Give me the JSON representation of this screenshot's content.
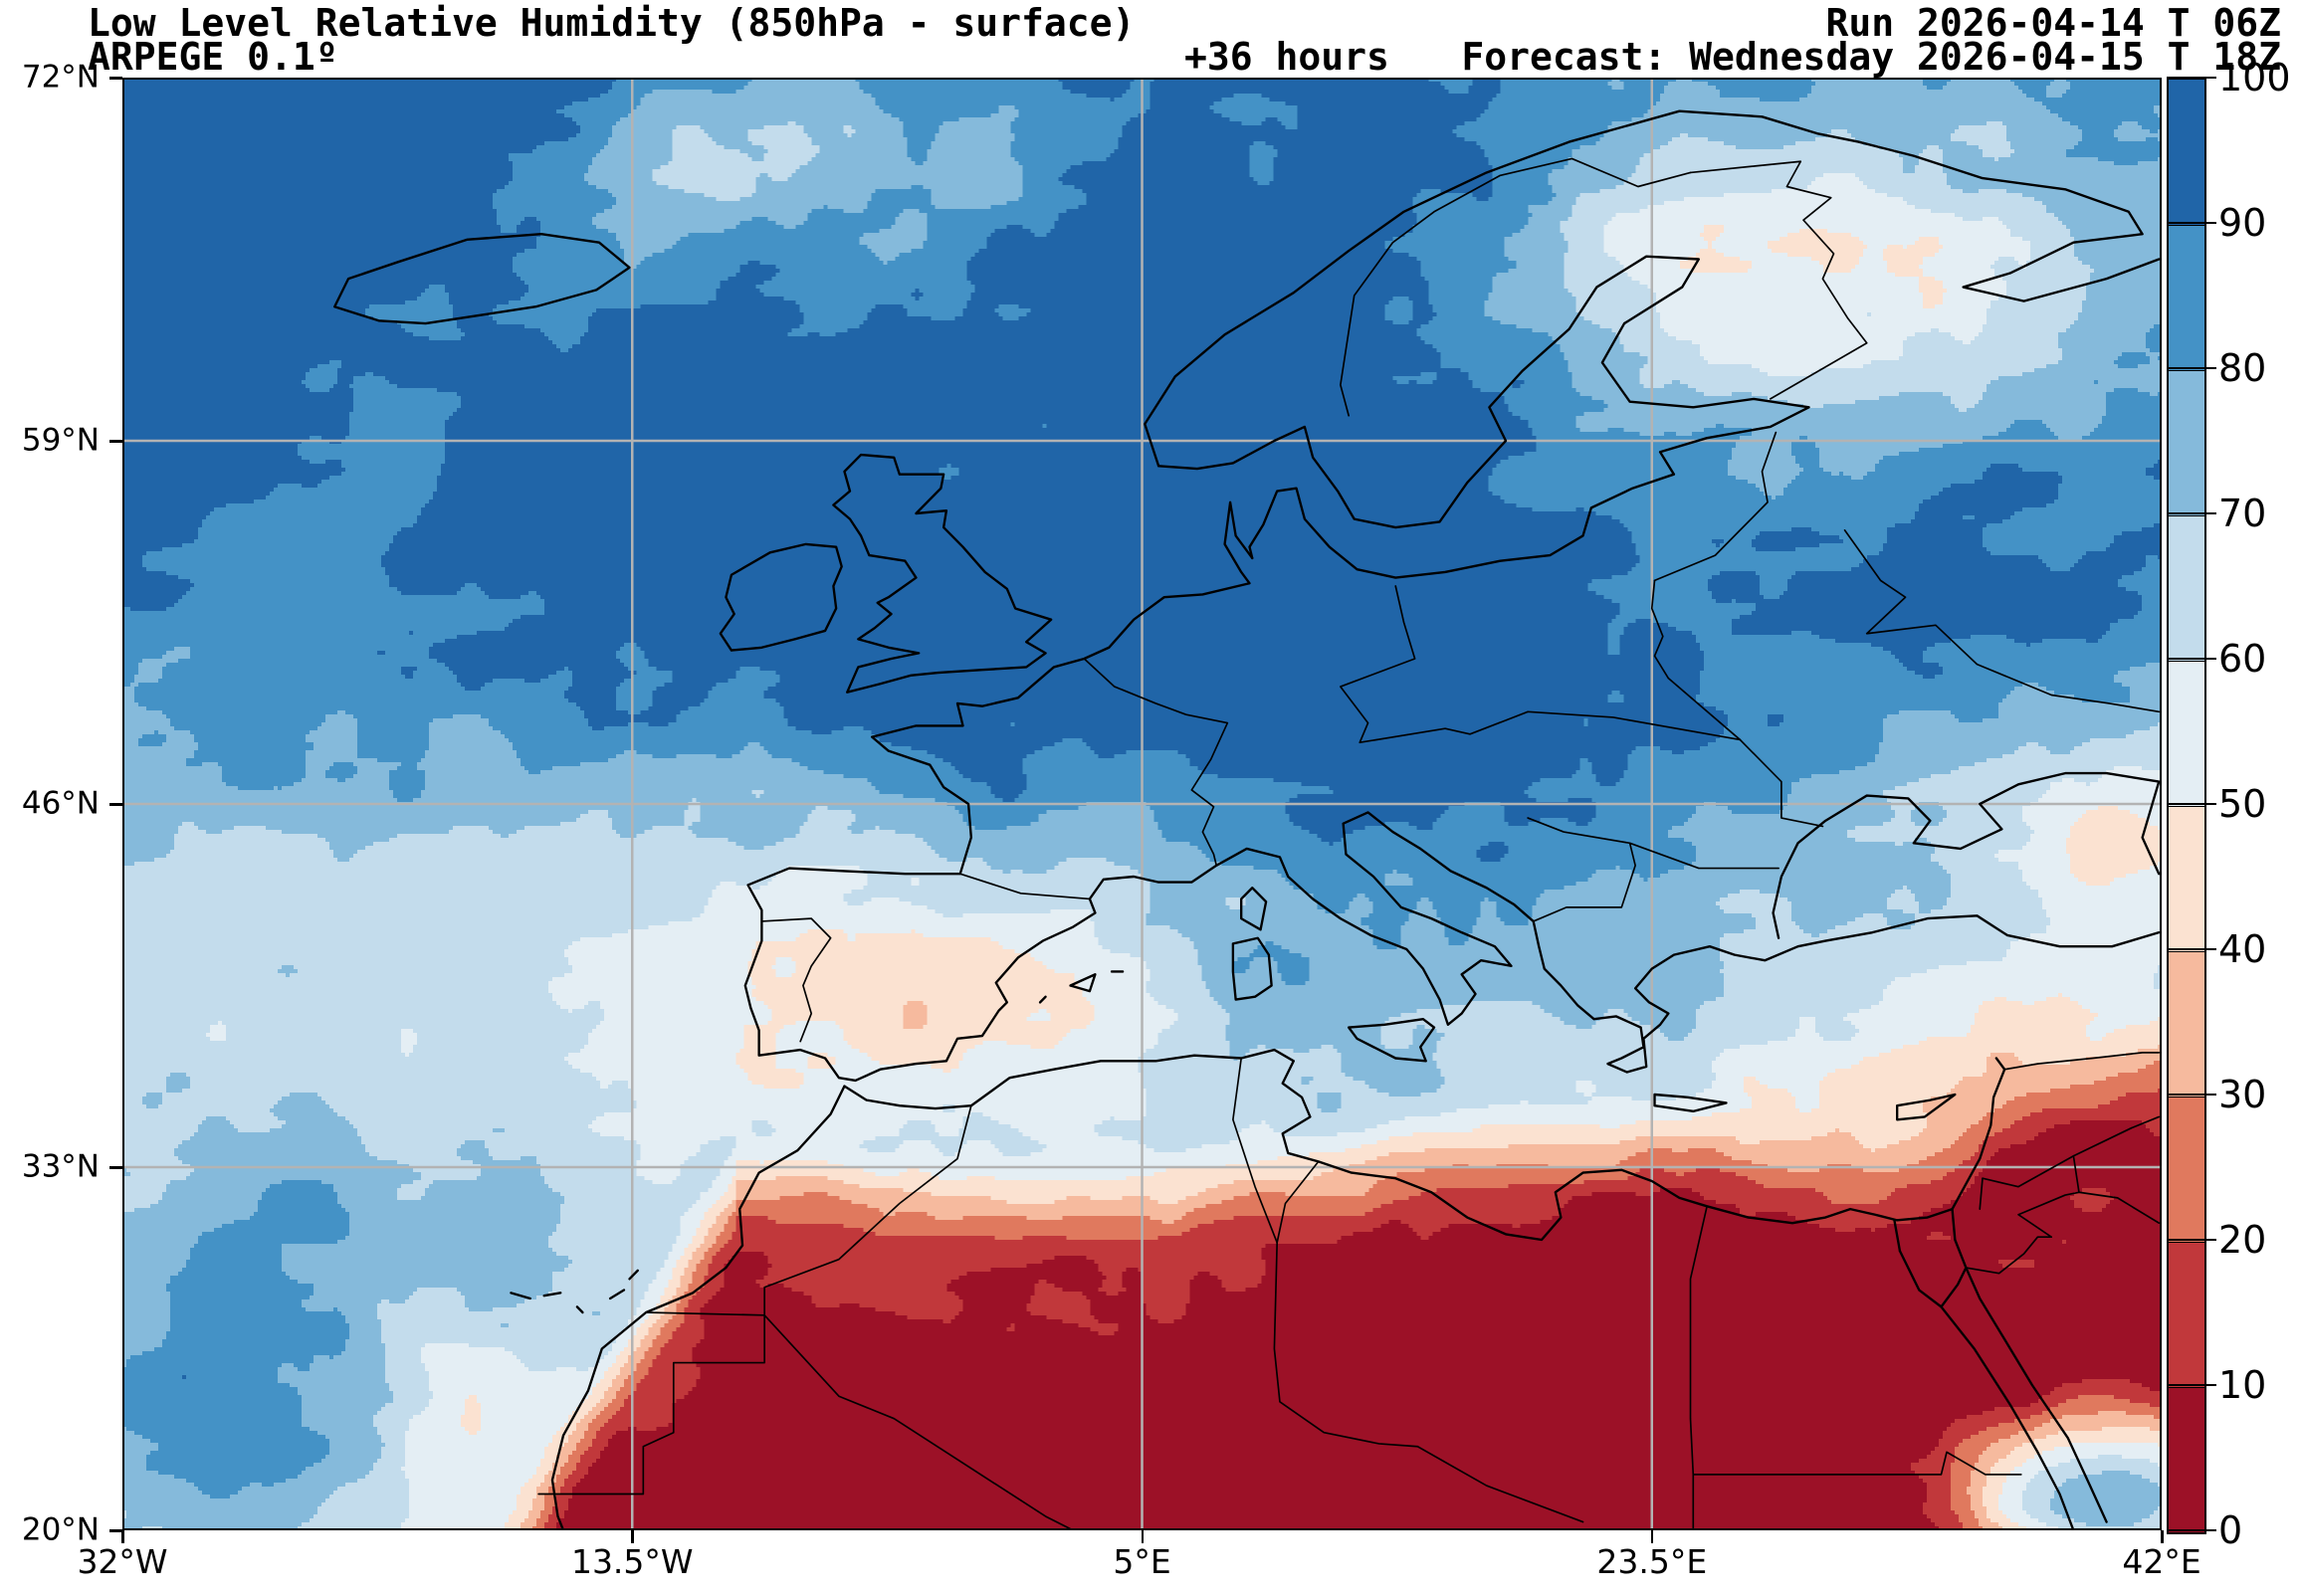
{
  "header": {
    "title": "Low Level Relative Humidity (850hPa - surface)",
    "model_line": "ARPEGE 0.1º",
    "lead_time": "+36 hours",
    "run": "Run 2026-04-14 T 06Z",
    "forecast": "Forecast: Wednesday 2026-04-15 T 18Z"
  },
  "axes": {
    "lat_ticks": [
      "72°N",
      "59°N",
      "46°N",
      "33°N",
      "20°N"
    ],
    "lon_ticks": [
      "32°W",
      "13.5°W",
      "5°E",
      "23.5°E",
      "42°E"
    ]
  },
  "colorbar": {
    "tick_labels": [
      "100",
      "90",
      "80",
      "70",
      "60",
      "50",
      "40",
      "30",
      "20",
      "10",
      "0"
    ],
    "levels": [
      0,
      10,
      20,
      30,
      40,
      50,
      60,
      70,
      80,
      90,
      100
    ],
    "colors": [
      "#9c1127",
      "#c1383b",
      "#e0795e",
      "#f6ba9e",
      "#fbe2d1",
      "#e4eef4",
      "#c3dcec",
      "#85badb",
      "#4492c6",
      "#2065a8"
    ]
  },
  "chart_data": {
    "type": "heatmap",
    "title": "Low Level Relative Humidity (850hPa - surface)",
    "model": "ARPEGE 0.1º",
    "run": "2026-04-14 T 06Z",
    "forecast_valid": "Wednesday 2026-04-15 T 18Z",
    "lead_hours": 36,
    "units": "%",
    "extent": {
      "lon": [
        -32,
        42
      ],
      "lat": [
        20,
        72
      ]
    },
    "levels": [
      0,
      10,
      20,
      30,
      40,
      50,
      60,
      70,
      80,
      90,
      100
    ],
    "palette_low_to_high": [
      "#9c1127",
      "#c1383b",
      "#e0795e",
      "#f6ba9e",
      "#fbe2d1",
      "#e4eef4",
      "#c3dcec",
      "#85badb",
      "#4492c6",
      "#2065a8"
    ],
    "grid_note": "approximate relative-humidity values sampled from the filled contours",
    "grid_lons": [
      -32,
      -24,
      -16,
      -8,
      0,
      8,
      16,
      24,
      32,
      40
    ],
    "grid_lats": [
      70,
      64,
      58,
      52,
      46,
      40,
      34,
      28,
      22
    ],
    "grid_rh": [
      [
        95,
        95,
        85,
        65,
        75,
        95,
        75,
        55,
        45,
        65
      ],
      [
        95,
        95,
        85,
        75,
        85,
        95,
        65,
        50,
        45,
        55
      ],
      [
        95,
        95,
        95,
        85,
        95,
        80,
        85,
        65,
        75,
        85
      ],
      [
        85,
        95,
        95,
        95,
        85,
        95,
        75,
        85,
        95,
        65
      ],
      [
        75,
        85,
        85,
        95,
        80,
        95,
        85,
        75,
        55,
        45
      ],
      [
        75,
        65,
        75,
        45,
        65,
        85,
        95,
        65,
        55,
        35
      ],
      [
        55,
        65,
        55,
        45,
        55,
        65,
        75,
        55,
        45,
        25
      ],
      [
        85,
        75,
        45,
        25,
        15,
        15,
        5,
        5,
        15,
        25
      ],
      [
        95,
        85,
        55,
        15,
        5,
        5,
        5,
        5,
        15,
        75
      ]
    ],
    "gridlines": {
      "lats": [
        59,
        46,
        33
      ],
      "lons": [
        -13.5,
        5,
        23.5
      ],
      "color": "#b3b3b3"
    }
  }
}
